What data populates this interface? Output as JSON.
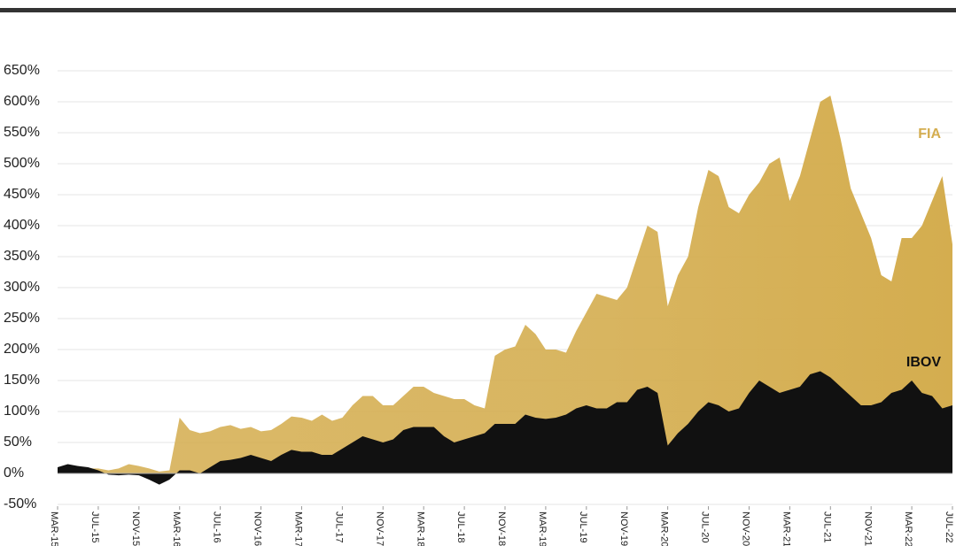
{
  "chart_data": {
    "type": "area",
    "categories": [
      "MAR-15",
      null,
      null,
      null,
      "JUL-15",
      null,
      null,
      null,
      "NOV-15",
      null,
      null,
      null,
      "MAR-16",
      null,
      null,
      null,
      "JUL-16",
      null,
      null,
      null,
      "NOV-16",
      null,
      null,
      null,
      "MAR-17",
      null,
      null,
      null,
      "JUL-17",
      null,
      null,
      null,
      "NOV-17",
      null,
      null,
      null,
      "MAR-18",
      null,
      null,
      null,
      "JUL-18",
      null,
      null,
      null,
      "NOV-18",
      null,
      null,
      null,
      "MAR-19",
      null,
      null,
      null,
      "JUL-19",
      null,
      null,
      null,
      "NOV-19",
      null,
      null,
      null,
      "MAR-20",
      null,
      null,
      null,
      "JUL-20",
      null,
      null,
      null,
      "NOV-20",
      null,
      null,
      null,
      "MAR-21",
      null,
      null,
      null,
      "JUL-21",
      null,
      null,
      null,
      "NOV-21",
      null,
      null,
      null,
      "MAR-22",
      null,
      null,
      null,
      "JUL-22"
    ],
    "series": [
      {
        "name": "FIA",
        "color": "#d4ad4f",
        "values": [
          5,
          10,
          12,
          8,
          8,
          5,
          8,
          15,
          12,
          8,
          3,
          5,
          90,
          70,
          65,
          68,
          75,
          78,
          72,
          75,
          68,
          70,
          80,
          92,
          90,
          85,
          95,
          85,
          90,
          110,
          125,
          125,
          110,
          110,
          125,
          140,
          140,
          130,
          125,
          120,
          120,
          110,
          105,
          190,
          200,
          205,
          240,
          225,
          200,
          200,
          195,
          230,
          260,
          290,
          285,
          280,
          300,
          350,
          400,
          390,
          270,
          320,
          350,
          430,
          490,
          480,
          430,
          420,
          450,
          470,
          500,
          510,
          440,
          480,
          540,
          600,
          610,
          540,
          460,
          420,
          380,
          320,
          310,
          380,
          380,
          400,
          440,
          480,
          370
        ]
      },
      {
        "name": "IBOV",
        "color": "#111111",
        "values": [
          10,
          15,
          12,
          10,
          5,
          -2,
          -3,
          -2,
          -3,
          -10,
          -18,
          -10,
          5,
          5,
          0,
          10,
          20,
          22,
          25,
          30,
          25,
          20,
          30,
          38,
          35,
          35,
          30,
          30,
          40,
          50,
          60,
          55,
          50,
          55,
          70,
          75,
          75,
          75,
          60,
          50,
          55,
          60,
          65,
          80,
          80,
          80,
          95,
          90,
          88,
          90,
          95,
          105,
          110,
          105,
          105,
          115,
          115,
          135,
          140,
          130,
          45,
          65,
          80,
          100,
          115,
          110,
          100,
          105,
          130,
          150,
          140,
          130,
          135,
          140,
          160,
          165,
          155,
          140,
          125,
          110,
          110,
          115,
          130,
          135,
          150,
          130,
          125,
          105,
          110
        ]
      }
    ],
    "ylim": [
      -50,
      650
    ],
    "yticks": [
      {
        "value": -50,
        "label": "-50%"
      },
      {
        "value": 0,
        "label": "0%"
      },
      {
        "value": 50,
        "label": "50%"
      },
      {
        "value": 100,
        "label": "100%"
      },
      {
        "value": 150,
        "label": "150%"
      },
      {
        "value": 200,
        "label": "200%"
      },
      {
        "value": 250,
        "label": "250%"
      },
      {
        "value": 300,
        "label": "300%"
      },
      {
        "value": 350,
        "label": "350%"
      },
      {
        "value": 400,
        "label": "400%"
      },
      {
        "value": 450,
        "label": "450%"
      },
      {
        "value": 500,
        "label": "500%"
      },
      {
        "value": 550,
        "label": "550%"
      },
      {
        "value": 600,
        "label": "600%"
      },
      {
        "value": 650,
        "label": "650%"
      }
    ],
    "grid": true
  }
}
